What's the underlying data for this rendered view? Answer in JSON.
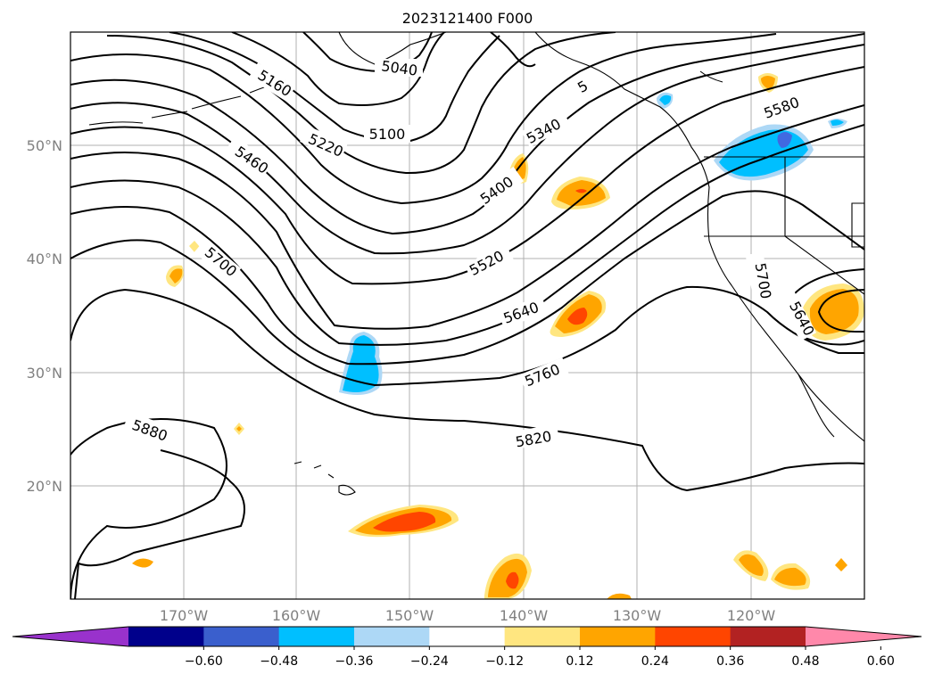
{
  "title": "2023121400 F000",
  "lat_labels": [
    "50°N",
    "40°N",
    "30°N",
    "20°N"
  ],
  "lon_labels": [
    "170°W",
    "160°W",
    "150°W",
    "140°W",
    "130°W",
    "120°W"
  ],
  "contour_labels": [
    "5040",
    "5160",
    "5100",
    "5220",
    "5340",
    "5460",
    "5400",
    "5580",
    "5520",
    "5700",
    "5640",
    "5760",
    "5700",
    "5640",
    "5880",
    "5820",
    "5"
  ],
  "colorbar": {
    "ticks": [
      "−0.60",
      "−0.48",
      "−0.36",
      "−0.24",
      "−0.12",
      "0.12",
      "0.24",
      "0.36",
      "0.48",
      "0.60"
    ],
    "colors": [
      "#9932cc",
      "#00008b",
      "#3a5fcd",
      "#00bfff",
      "#add8f6",
      "#ffffff",
      "#ffe680",
      "#ffa500",
      "#ff4500",
      "#b22222",
      "#ff88aa"
    ]
  },
  "colors": {
    "light_yellow": "#ffe680",
    "orange": "#ffa500",
    "red_orange": "#ff4500",
    "deep_sky_blue": "#00bfff",
    "light_blue": "#add8f6",
    "royal_blue": "#4169e1"
  }
}
